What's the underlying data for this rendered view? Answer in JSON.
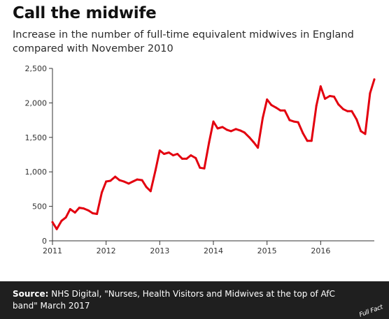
{
  "header": {
    "title": "Call the midwife",
    "subtitle": "Increase in the number of full-time equivalent midwives in England compared with November 2010"
  },
  "footer": {
    "source_label": "Source:",
    "source_text": "NHS Digital, \"Nurses, Health Visitors and Midwives at the top of AfC band\" March 2017",
    "logo_text": "Full Fact"
  },
  "colors": {
    "line": "#e3000f",
    "footer_bg": "#1f1f1f",
    "axis": "#333333"
  },
  "chart_data": {
    "type": "line",
    "title": "Call the midwife",
    "xlabel": "",
    "ylabel": "",
    "ylim": [
      0,
      2500
    ],
    "yticks": [
      0,
      500,
      1000,
      1500,
      2000,
      2500
    ],
    "ytick_labels": [
      "0",
      "500",
      "1,000",
      "1,500",
      "2,000",
      "2,500"
    ],
    "xlim": [
      2011.0,
      2017.0
    ],
    "xticks": [
      2011,
      2012,
      2013,
      2014,
      2015,
      2016
    ],
    "xtick_labels": [
      "2011",
      "2012",
      "2013",
      "2014",
      "2015",
      "2016"
    ],
    "grid": false,
    "series": [
      {
        "x": [
          2011.0,
          2011.08,
          2011.17,
          2011.25,
          2011.33,
          2011.42,
          2011.5,
          2011.58,
          2011.67,
          2011.75,
          2011.83,
          2011.92,
          2012.0,
          2012.08,
          2012.17,
          2012.25,
          2012.33,
          2012.42,
          2012.5,
          2012.58,
          2012.67,
          2012.75,
          2012.83,
          2012.92,
          2013.0,
          2013.08,
          2013.17,
          2013.25,
          2013.33,
          2013.42,
          2013.5,
          2013.58,
          2013.67,
          2013.75,
          2013.83,
          2013.92,
          2014.0,
          2014.08,
          2014.17,
          2014.25,
          2014.33,
          2014.42,
          2014.5,
          2014.58,
          2014.67,
          2014.75,
          2014.83,
          2014.92,
          2015.0,
          2015.08,
          2015.17,
          2015.25,
          2015.33,
          2015.42,
          2015.5,
          2015.58,
          2015.67,
          2015.75,
          2015.83,
          2015.92,
          2016.0,
          2016.08,
          2016.17,
          2016.25,
          2016.33,
          2016.42,
          2016.5,
          2016.58,
          2016.67,
          2016.75,
          2016.83,
          2016.92,
          2017.0
        ],
        "values": [
          270,
          170,
          290,
          340,
          460,
          410,
          480,
          470,
          440,
          400,
          390,
          700,
          860,
          870,
          930,
          880,
          860,
          830,
          860,
          890,
          880,
          780,
          720,
          1020,
          1310,
          1260,
          1280,
          1240,
          1260,
          1190,
          1190,
          1240,
          1200,
          1060,
          1050,
          1430,
          1730,
          1630,
          1650,
          1610,
          1590,
          1620,
          1600,
          1570,
          1500,
          1430,
          1350,
          1780,
          2050,
          1970,
          1930,
          1890,
          1890,
          1750,
          1730,
          1720,
          1560,
          1450,
          1450,
          1960,
          2240,
          2060,
          2100,
          2090,
          1980,
          1910,
          1880,
          1880,
          1760,
          1590,
          1550,
          2140,
          2340
        ]
      }
    ]
  }
}
